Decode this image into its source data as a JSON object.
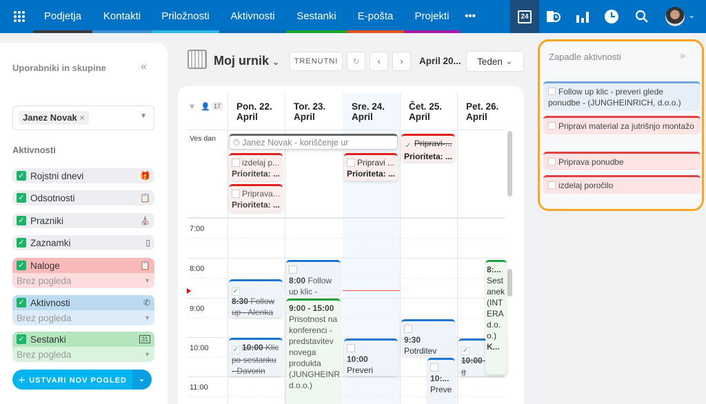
{
  "nav": {
    "items": [
      {
        "label": "Podjetja",
        "color": "#3a3a3a"
      },
      {
        "label": "Kontakti",
        "color": "#3a8fd6"
      },
      {
        "label": "Priložnosti",
        "color": "#29b6e8"
      },
      {
        "label": "Aktivnosti",
        "color": "#0a68b8"
      },
      {
        "label": "Sestanki",
        "color": "#17a329"
      },
      {
        "label": "E-pošta",
        "color": "#e0541b"
      },
      {
        "label": "Projekti",
        "color": "#a51aa5"
      }
    ],
    "more": "•••",
    "calendar_day": "24"
  },
  "sidebar": {
    "title": "Uporabniki in skupine",
    "user_chip": "Janez Novak",
    "activities_title": "Aktivnosti",
    "categories": [
      {
        "label": "Rojstni dnevi",
        "icon": "🎁"
      },
      {
        "label": "Odsotnosti",
        "icon": "📋"
      },
      {
        "label": "Prazniki",
        "icon": "⛪"
      },
      {
        "label": "Zaznamki",
        "icon": "▯"
      }
    ],
    "groups": [
      {
        "label": "Naloge",
        "view": "Brez pogleda",
        "icon": "📋"
      },
      {
        "label": "Aktivnosti",
        "view": "Brez pogleda",
        "icon": "✆"
      },
      {
        "label": "Sestanki",
        "view": "Brez pogleda",
        "icon": "31"
      }
    ],
    "create_button": "USTVARI NOV POGLED"
  },
  "toolbar": {
    "title": "Moj urnik",
    "today": "TRENUTNI",
    "period": "April 20...",
    "view": "Teden"
  },
  "calendar": {
    "count": "17",
    "all_day": "Ves dan",
    "days": [
      {
        "l1": "Pon. 22.",
        "l2": "April"
      },
      {
        "l1": "Tor. 23.",
        "l2": "April"
      },
      {
        "l1": "Sre. 24.",
        "l2": "April"
      },
      {
        "l1": "Čet. 25.",
        "l2": "April"
      },
      {
        "l1": "Pet. 26.",
        "l2": "April"
      }
    ],
    "hours": [
      "7:00",
      "8:00",
      "9:00",
      "10:00",
      "11:00"
    ],
    "allday_events": {
      "absence": "Janez Novak - koriščenje ur",
      "mon1": "izdelaj p...",
      "mon2": "Priprava...",
      "wed1": "Pripravi ...",
      "thu1": "Pripravi-...",
      "priority": "Prioriteta: ..."
    },
    "events": {
      "mon830_time": "8:30",
      "mon830_text": "Follow up - Alenka",
      "mon1000_time": "10:00",
      "mon1000_text": "Klic po sestanku - Davorin",
      "tue800_time": "8:00",
      "tue800_text": "Follow up klic -",
      "tue900_time": "9:00 - 15:00",
      "tue900_text": "Prisotnost na konferenci - predstavitev novega produkta (JUNGHEINRICH, d.o.o.)",
      "wed1000_time": "10:00",
      "wed1000_text": "Preveri glede",
      "thu930_time": "9:30",
      "thu930_text": "Potrditev sestanka",
      "thu10_time": "10:...",
      "thu10_text": "Preve",
      "fri1000_time": "10:00",
      "fri1000_text": "erite g",
      "fri800_time": "8:...",
      "fri800_text": "Sestanek (INTERA d.o.o.)",
      "fri800_more": "K..."
    }
  },
  "overdue": {
    "title": "Zapadle aktivnosti",
    "items": [
      "Follow up klic - preveri glede ponudbe - (JUNGHEINRICH, d.o.o.)",
      "Pripravi material za jutrišnjo montažo",
      "Priprava ponudbe",
      "izdelaj poročilo"
    ]
  }
}
